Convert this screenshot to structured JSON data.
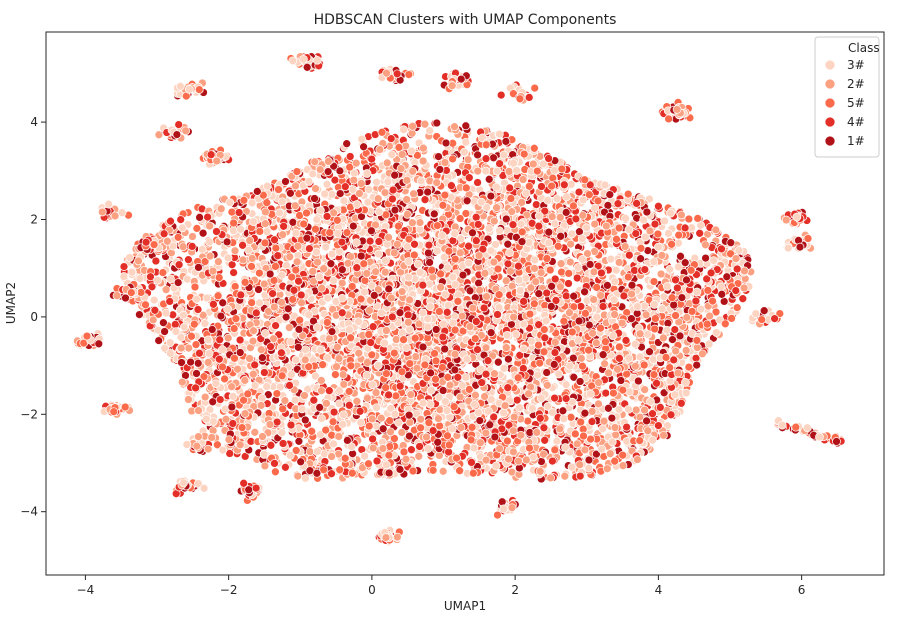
{
  "chart_data": {
    "type": "scatter",
    "title": "HDBSCAN Clusters with UMAP Components",
    "xlabel": "UMAP1",
    "ylabel": "UMAP2",
    "xlim": [
      -4.55,
      7.15
    ],
    "ylim": [
      -5.3,
      5.85
    ],
    "x_ticks": [
      -4,
      -2,
      0,
      2,
      4,
      6
    ],
    "y_ticks": [
      -4,
      -2,
      0,
      2,
      4
    ],
    "x_tick_labels": [
      "−4",
      "−2",
      "0",
      "2",
      "4",
      "6"
    ],
    "y_tick_labels": [
      "−4",
      "−2",
      "0",
      "2",
      "4"
    ],
    "grid": false,
    "legend": {
      "title": "Class",
      "placement": "top-right",
      "entries": [
        "3#",
        "2#",
        "5#",
        "4#",
        "1#"
      ]
    },
    "series": [
      {
        "name": "3#",
        "color": "#fdd4c2",
        "count": 2400
      },
      {
        "name": "2#",
        "color": "#fca082",
        "count": 2100
      },
      {
        "name": "5#",
        "color": "#fb6a4a",
        "count": 1800
      },
      {
        "name": "4#",
        "color": "#e32f27",
        "count": 1600
      },
      {
        "name": "1#",
        "color": "#b11218",
        "count": 1300
      }
    ],
    "main_cloud": {
      "center": [
        0.9,
        0.1
      ],
      "radius_x": 4.2,
      "radius_y": 3.6
    },
    "small_clusters": [
      {
        "center": [
          -0.9,
          5.25
        ],
        "n": 40
      },
      {
        "center": [
          -2.55,
          4.65
        ],
        "n": 25
      },
      {
        "center": [
          -2.75,
          3.8
        ],
        "n": 25
      },
      {
        "center": [
          -2.2,
          3.3
        ],
        "n": 40
      },
      {
        "center": [
          0.3,
          4.95
        ],
        "n": 25
      },
      {
        "center": [
          1.2,
          4.85
        ],
        "n": 30
      },
      {
        "center": [
          2.05,
          4.6
        ],
        "n": 20
      },
      {
        "center": [
          4.25,
          4.2
        ],
        "n": 45
      },
      {
        "center": [
          -3.6,
          2.15
        ],
        "n": 20
      },
      {
        "center": [
          -3.1,
          1.5
        ],
        "n": 30
      },
      {
        "center": [
          5.9,
          2.0
        ],
        "n": 20
      },
      {
        "center": [
          5.95,
          1.5
        ],
        "n": 25
      },
      {
        "center": [
          -3.4,
          0.5
        ],
        "n": 30
      },
      {
        "center": [
          5.5,
          0.0
        ],
        "n": 20
      },
      {
        "center": [
          -3.95,
          -0.5
        ],
        "n": 25
      },
      {
        "center": [
          -3.55,
          -1.9
        ],
        "n": 25
      },
      {
        "center": [
          -2.4,
          -2.6
        ],
        "n": 30
      },
      {
        "center": [
          -2.6,
          -3.5
        ],
        "n": 30
      },
      {
        "center": [
          -1.7,
          -3.6
        ],
        "n": 25
      },
      {
        "center": [
          0.2,
          -4.5
        ],
        "n": 30
      },
      {
        "center": [
          1.9,
          -3.9
        ],
        "n": 25
      },
      {
        "center": [
          3.95,
          -2.3
        ],
        "n": 25
      }
    ],
    "tail": {
      "from": [
        5.6,
        -2.15
      ],
      "to": [
        6.6,
        -2.6
      ],
      "n": 45
    }
  }
}
